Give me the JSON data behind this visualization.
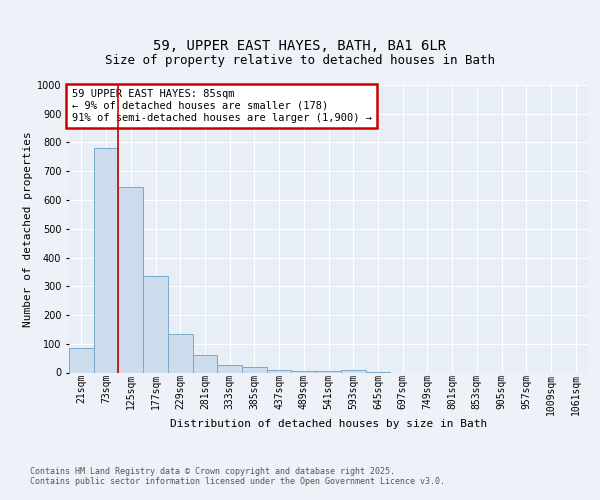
{
  "title_line1": "59, UPPER EAST HAYES, BATH, BA1 6LR",
  "title_line2": "Size of property relative to detached houses in Bath",
  "xlabel": "Distribution of detached houses by size in Bath",
  "ylabel": "Number of detached properties",
  "bar_labels": [
    "21sqm",
    "73sqm",
    "125sqm",
    "177sqm",
    "229sqm",
    "281sqm",
    "333sqm",
    "385sqm",
    "437sqm",
    "489sqm",
    "541sqm",
    "593sqm",
    "645sqm",
    "697sqm",
    "749sqm",
    "801sqm",
    "853sqm",
    "905sqm",
    "957sqm",
    "1009sqm",
    "1061sqm"
  ],
  "bar_values": [
    85,
    780,
    645,
    335,
    135,
    60,
    25,
    20,
    10,
    5,
    5,
    8,
    3,
    0,
    0,
    0,
    0,
    0,
    0,
    0,
    0
  ],
  "bar_color": "#ccdcec",
  "bar_edge_color": "#7aaac8",
  "ylim": [
    0,
    1000
  ],
  "yticks": [
    0,
    100,
    200,
    300,
    400,
    500,
    600,
    700,
    800,
    900,
    1000
  ],
  "annotation_line1": "59 UPPER EAST HAYES: 85sqm",
  "annotation_line2": "← 9% of detached houses are smaller (178)",
  "annotation_line3": "91% of semi-detached houses are larger (1,900) →",
  "annotation_box_color": "#cc0000",
  "red_line_x": 1.5,
  "footer_line1": "Contains HM Land Registry data © Crown copyright and database right 2025.",
  "footer_line2": "Contains public sector information licensed under the Open Government Licence v3.0.",
  "bg_color": "#eef2f8",
  "plot_bg_color": "#e8eef6",
  "grid_color": "#ffffff",
  "title_fontsize": 10,
  "subtitle_fontsize": 9,
  "label_fontsize": 8,
  "ylabel_fontsize": 8,
  "xlabel_fontsize": 8,
  "annotation_fontsize": 7.5,
  "footer_fontsize": 6,
  "tick_fontsize": 7
}
